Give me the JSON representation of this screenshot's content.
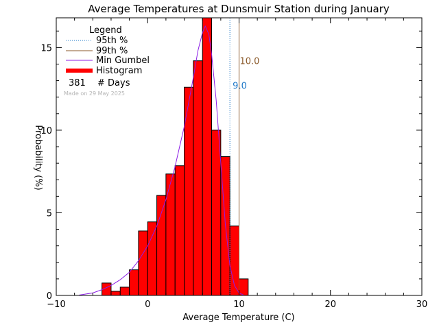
{
  "chart_data": {
    "type": "bar",
    "title": "Average Temperatures at Dunsmuir Station during January",
    "xlabel": "Average Temperature (C)",
    "ylabel": "Probability (%)",
    "xlim": [
      -10,
      30
    ],
    "ylim": [
      0,
      16.8
    ],
    "xticks": [
      -10,
      0,
      10,
      20,
      30
    ],
    "yticks": [
      0,
      5,
      10,
      15
    ],
    "legend_title": "Legend",
    "legend_position": "top-left",
    "legend": [
      {
        "label": "95th %",
        "style": "dotted",
        "color": "#1e78c8"
      },
      {
        "label": "99th %",
        "style": "solid",
        "color": "#8b5a2b"
      },
      {
        "label": "Min Gumbel",
        "style": "solid",
        "color": "#8c1ee6"
      },
      {
        "label": "Histogram",
        "style": "thick",
        "color": "#ff0000"
      }
    ],
    "days_count": "381",
    "days_label": "# Days",
    "made_on": "Made on 29 May 2025",
    "histogram": {
      "bin_width": 1,
      "bins_left": [
        -5,
        -4,
        -3,
        -2,
        -1,
        0,
        1,
        2,
        3,
        4,
        5,
        6,
        7,
        8,
        9,
        10
      ],
      "values": [
        0.75,
        0.25,
        0.5,
        1.55,
        3.9,
        4.45,
        6.05,
        7.35,
        7.85,
        12.6,
        14.2,
        17.3,
        10.0,
        8.4,
        4.2,
        1.0
      ]
    },
    "gumbel": {
      "x": [
        -7.5,
        -6,
        -5,
        -4,
        -3,
        -2,
        -1,
        0,
        1,
        2,
        3,
        4,
        5,
        5.5,
        6,
        6.3,
        6.7,
        7,
        7.5,
        8,
        8.5,
        9,
        9.5,
        10,
        10.5
      ],
      "y": [
        0.02,
        0.15,
        0.35,
        0.6,
        0.95,
        1.4,
        2.1,
        3.0,
        4.2,
        5.8,
        7.8,
        10.2,
        13.2,
        14.8,
        15.9,
        16.3,
        15.8,
        14.6,
        11.8,
        8.0,
        4.3,
        1.8,
        0.6,
        0.15,
        0.02
      ]
    },
    "p95": {
      "value": 9.0,
      "label": "9.0",
      "color": "#1e78c8"
    },
    "p99": {
      "value": 10.0,
      "label": "10.0",
      "color": "#8b5a2b"
    },
    "hist_color": "#ff0000",
    "gumbel_color": "#8c1ee6"
  }
}
